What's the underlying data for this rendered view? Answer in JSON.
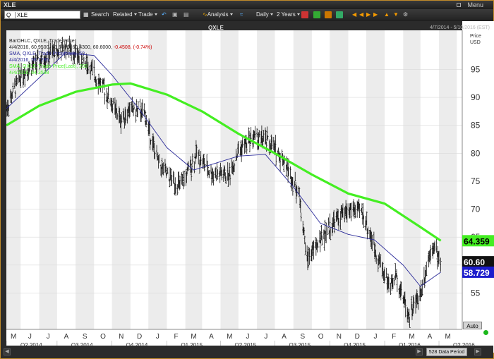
{
  "window": {
    "title": "XLE",
    "menu_label": "Menu"
  },
  "toolbar": {
    "symbol_type": "Q",
    "symbol": "XLE",
    "search": "Search",
    "related": "Related",
    "trade": "Trade",
    "analysis": "Analysis",
    "frequency": "Daily",
    "range": "2 Years"
  },
  "header": {
    "center_title": "QXLE",
    "date_range": "4/7/2014 - 5/10/2016 (EST)",
    "price_label": "Price",
    "currency": "USD"
  },
  "legend": {
    "line1": "BarOHLC, QXLE, Trade Price",
    "line2_values": "4/4/2016, 60.9500, 61.5899, 60.4300, 60.6000,",
    "line2_change": "-0.4508, (-0.74%)",
    "line3": "SMA, QXLE, Trade Price(Last), 50",
    "line4": "4/4/2016, 58.7295",
    "line5": "SMA, QXLE, Trade Price(Last), 200",
    "line6": "4/4/2016, 64.3598"
  },
  "price_badges": {
    "sma200": "64.359",
    "last": "60.60",
    "sma50": "58.729"
  },
  "footer": {
    "data_period": "528 Data Period",
    "auto": "Auto"
  },
  "colors": {
    "sma200": "#44ee22",
    "sma50": "#2a2a99",
    "bars": "#111111",
    "negative": "#cc0000",
    "panel_bg": "#ffffff",
    "stripe": "#ececec"
  },
  "chart_data": {
    "type": "line",
    "title": "QXLE",
    "ylabel": "Price USD",
    "ylim": [
      48.5,
      102
    ],
    "yticks": [
      55,
      60,
      65,
      70,
      75,
      80,
      85,
      90,
      95
    ],
    "x_month_labels": [
      "M",
      "J",
      "J",
      "A",
      "S",
      "O",
      "N",
      "D",
      "J",
      "F",
      "M",
      "A",
      "M",
      "J",
      "J",
      "A",
      "S",
      "O",
      "N",
      "D",
      "J",
      "F",
      "M",
      "A",
      "M"
    ],
    "quarter_labels": [
      "Q2 2014",
      "Q3 2014",
      "Q4 2014",
      "Q1 2015",
      "Q2 2015",
      "Q3 2015",
      "Q4 2015",
      "Q1 2016",
      "Q2 2016"
    ],
    "series": [
      {
        "name": "SMA, QXLE, Trade Price(Last), 200",
        "x": [
          "2014-04-07",
          "2014-06-01",
          "2014-08-01",
          "2014-10-01",
          "2014-11-01",
          "2015-01-01",
          "2015-03-01",
          "2015-05-01",
          "2015-07-01",
          "2015-09-01",
          "2015-11-01",
          "2016-01-01",
          "2016-03-01",
          "2016-04-04"
        ],
        "values": [
          85,
          88.5,
          91,
          92.3,
          92.5,
          90.5,
          87.5,
          83.5,
          80,
          76.2,
          72.8,
          71,
          66.8,
          64.36
        ]
      },
      {
        "name": "SMA, QXLE, Trade Price(Last), 50",
        "x": [
          "2014-04-07",
          "2014-06-01",
          "2014-07-15",
          "2014-09-01",
          "2014-10-01",
          "2014-11-15",
          "2015-01-01",
          "2015-02-15",
          "2015-04-01",
          "2015-05-01",
          "2015-06-15",
          "2015-08-01",
          "2015-09-15",
          "2015-11-01",
          "2015-12-15",
          "2016-02-01",
          "2016-03-01",
          "2016-04-04"
        ],
        "values": [
          88,
          93.5,
          98,
          97.5,
          94,
          88,
          81,
          77,
          78.5,
          79.5,
          79.8,
          74,
          67.5,
          65.5,
          64.5,
          60,
          56.2,
          58.73
        ]
      },
      {
        "name": "BarOHLC, QXLE, Trade Price",
        "x": [
          "2014-04-07",
          "2014-05-01",
          "2014-06-15",
          "2014-07-20",
          "2014-08-20",
          "2014-09-15",
          "2014-10-15",
          "2014-11-01",
          "2014-11-25",
          "2014-12-15",
          "2015-01-01",
          "2015-01-25",
          "2015-02-20",
          "2015-03-15",
          "2015-04-15",
          "2015-05-01",
          "2015-05-25",
          "2015-06-20",
          "2015-07-15",
          "2015-08-10",
          "2015-08-24",
          "2015-09-15",
          "2015-10-10",
          "2015-11-05",
          "2015-11-25",
          "2015-12-15",
          "2016-01-10",
          "2016-01-20",
          "2016-02-11",
          "2016-03-01",
          "2016-03-20",
          "2016-04-04"
        ],
        "values": [
          88,
          94,
          97.5,
          99,
          96,
          92,
          86,
          88,
          87,
          79,
          76,
          74,
          80,
          76.5,
          76,
          80.5,
          83,
          82,
          79,
          73,
          61,
          64.5,
          68,
          70,
          69.5,
          63,
          56,
          58.2,
          51,
          55,
          64,
          60.6
        ]
      }
    ]
  }
}
